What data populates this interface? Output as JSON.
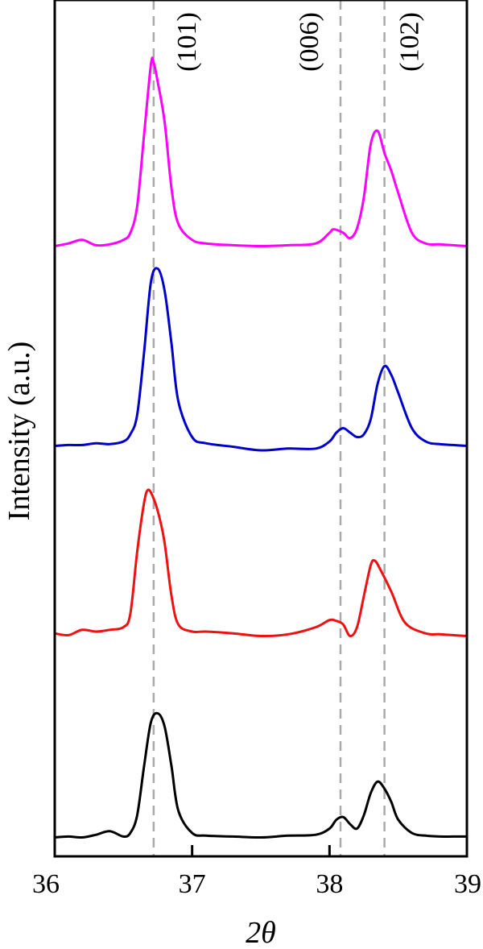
{
  "chart_data": {
    "type": "line",
    "xlabel": "2θ",
    "ylabel": "Intensity (a.u.)",
    "xlim": [
      36,
      39
    ],
    "xticks": [
      "36",
      "37",
      "38",
      "39"
    ],
    "yticks_shown": false,
    "grid": false,
    "legend": "none",
    "reference_lines": [
      {
        "label": "(101)",
        "x": 36.72
      },
      {
        "label": "(006)",
        "x": 38.08
      },
      {
        "label": "(102)",
        "x": 38.4
      }
    ],
    "reference_line_color": "#aaaaaa",
    "offset_note": "curves are stacked with vertical offsets; y values are arbitrary units",
    "series": [
      {
        "color": "#ff00ff",
        "x": [
          36.0,
          36.1,
          36.2,
          36.3,
          36.4,
          36.5,
          36.55,
          36.6,
          36.65,
          36.7,
          36.72,
          36.75,
          36.8,
          36.85,
          36.9,
          37.0,
          37.1,
          37.3,
          37.5,
          37.7,
          37.9,
          38.0,
          38.03,
          38.1,
          38.15,
          38.2,
          38.25,
          38.3,
          38.35,
          38.4,
          38.45,
          38.5,
          38.6,
          38.7,
          38.8,
          38.9,
          39.0
        ],
        "y": [
          0.15,
          0.18,
          0.22,
          0.16,
          0.17,
          0.22,
          0.3,
          0.6,
          1.4,
          2.2,
          2.22,
          2.0,
          1.55,
          0.8,
          0.4,
          0.22,
          0.18,
          0.16,
          0.15,
          0.16,
          0.18,
          0.3,
          0.34,
          0.3,
          0.24,
          0.35,
          0.7,
          1.3,
          1.45,
          1.2,
          1.0,
          0.75,
          0.3,
          0.18,
          0.17,
          0.16,
          0.15
        ]
      },
      {
        "color": "#0000cc",
        "x": [
          36.0,
          36.1,
          36.2,
          36.3,
          36.4,
          36.5,
          36.55,
          36.6,
          36.65,
          36.7,
          36.75,
          36.8,
          36.85,
          36.9,
          37.0,
          37.1,
          37.3,
          37.5,
          37.7,
          37.9,
          38.0,
          38.05,
          38.1,
          38.15,
          38.2,
          38.25,
          38.3,
          38.35,
          38.4,
          38.45,
          38.5,
          38.6,
          38.7,
          38.8,
          38.9,
          39.0
        ],
        "y": [
          0.15,
          0.16,
          0.16,
          0.18,
          0.17,
          0.2,
          0.28,
          0.5,
          1.2,
          2.0,
          2.15,
          1.9,
          1.3,
          0.65,
          0.25,
          0.18,
          0.14,
          0.1,
          0.12,
          0.12,
          0.2,
          0.3,
          0.35,
          0.3,
          0.25,
          0.28,
          0.45,
          0.85,
          1.05,
          0.95,
          0.75,
          0.35,
          0.2,
          0.17,
          0.16,
          0.15
        ]
      },
      {
        "color": "#ee1111",
        "x": [
          36.0,
          36.1,
          36.2,
          36.3,
          36.4,
          36.5,
          36.55,
          36.6,
          36.65,
          36.68,
          36.72,
          36.76,
          36.8,
          36.85,
          36.9,
          37.0,
          37.1,
          37.3,
          37.5,
          37.7,
          37.9,
          38.0,
          38.05,
          38.1,
          38.15,
          38.2,
          38.25,
          38.3,
          38.33,
          38.37,
          38.45,
          38.55,
          38.7,
          38.8,
          38.9,
          39.0
        ],
        "y": [
          0.18,
          0.16,
          0.22,
          0.2,
          0.22,
          0.25,
          0.4,
          1.1,
          1.65,
          1.8,
          1.7,
          1.5,
          1.2,
          0.6,
          0.28,
          0.2,
          0.2,
          0.18,
          0.15,
          0.17,
          0.25,
          0.33,
          0.32,
          0.28,
          0.15,
          0.25,
          0.6,
          0.95,
          1.0,
          0.9,
          0.65,
          0.3,
          0.18,
          0.17,
          0.16,
          0.15
        ]
      },
      {
        "color": "#000000",
        "x": [
          36.0,
          36.1,
          36.2,
          36.3,
          36.4,
          36.5,
          36.55,
          36.6,
          36.65,
          36.7,
          36.75,
          36.8,
          36.85,
          36.9,
          37.0,
          37.1,
          37.3,
          37.5,
          37.7,
          37.9,
          38.0,
          38.05,
          38.1,
          38.15,
          38.2,
          38.25,
          38.3,
          38.35,
          38.4,
          38.45,
          38.5,
          38.6,
          38.7,
          38.8,
          38.9,
          39.0
        ],
        "y": [
          0.05,
          0.06,
          0.05,
          0.08,
          0.12,
          0.06,
          0.1,
          0.3,
          0.85,
          1.35,
          1.45,
          1.3,
          0.85,
          0.35,
          0.1,
          0.07,
          0.06,
          0.05,
          0.07,
          0.08,
          0.15,
          0.25,
          0.28,
          0.2,
          0.15,
          0.3,
          0.55,
          0.68,
          0.6,
          0.45,
          0.25,
          0.1,
          0.07,
          0.06,
          0.06,
          0.06
        ]
      }
    ]
  }
}
